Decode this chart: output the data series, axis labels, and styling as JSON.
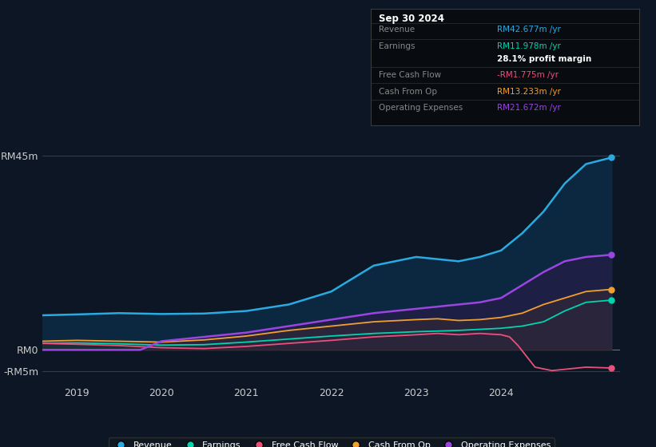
{
  "bg_color": "#0c1624",
  "chart_bg": "#0c1624",
  "ylim": [
    -8,
    52
  ],
  "xlim": [
    2018.6,
    2025.4
  ],
  "yticks_labels": [
    "RM45m",
    "RM0",
    "-RM5m"
  ],
  "yticks_values": [
    45,
    0,
    -5
  ],
  "xticks": [
    2019,
    2020,
    2021,
    2022,
    2023,
    2024
  ],
  "revenue_color": "#29abe2",
  "revenue_fill": "#0d2d4a",
  "earnings_color": "#00d4b0",
  "fcf_color": "#e8517a",
  "cashop_color": "#f0a030",
  "opex_color": "#9b45e0",
  "opex_fill": "#2d1a4a",
  "legend": [
    {
      "label": "Revenue",
      "color": "#29abe2"
    },
    {
      "label": "Earnings",
      "color": "#00d4b0"
    },
    {
      "label": "Free Cash Flow",
      "color": "#e8517a"
    },
    {
      "label": "Cash From Op",
      "color": "#f0a030"
    },
    {
      "label": "Operating Expenses",
      "color": "#9b45e0"
    }
  ],
  "info_title": "Sep 30 2024",
  "info_rows": [
    {
      "label": "Revenue",
      "value": "RM42.677m /yr",
      "vcolor": "#29abe2"
    },
    {
      "label": "Earnings",
      "value": "RM11.978m /yr",
      "vcolor": "#00d4b0"
    },
    {
      "label": "",
      "value": "28.1% profit margin",
      "vcolor": "#ffffff",
      "bold": true
    },
    {
      "label": "Free Cash Flow",
      "value": "-RM1.775m /yr",
      "vcolor": "#e8517a"
    },
    {
      "label": "Cash From Op",
      "value": "RM13.233m /yr",
      "vcolor": "#f0a030"
    },
    {
      "label": "Operating Expenses",
      "value": "RM21.672m /yr",
      "vcolor": "#9b45e0"
    }
  ],
  "revenue": {
    "x": [
      2018.6,
      2019.0,
      2019.5,
      2020.0,
      2020.5,
      2021.0,
      2021.5,
      2022.0,
      2022.25,
      2022.5,
      2022.75,
      2023.0,
      2023.25,
      2023.5,
      2023.75,
      2024.0,
      2024.25,
      2024.5,
      2024.75,
      2025.0,
      2025.3
    ],
    "y": [
      8.0,
      8.2,
      8.5,
      8.3,
      8.4,
      9.0,
      10.5,
      13.5,
      16.5,
      19.5,
      20.5,
      21.5,
      21.0,
      20.5,
      21.5,
      23.0,
      27.0,
      32.0,
      38.5,
      43.0,
      44.5
    ]
  },
  "earnings": {
    "x": [
      2018.6,
      2019.0,
      2019.5,
      2020.0,
      2020.5,
      2021.0,
      2021.5,
      2022.0,
      2022.5,
      2023.0,
      2023.5,
      2024.0,
      2024.25,
      2024.5,
      2024.75,
      2025.0,
      2025.3
    ],
    "y": [
      1.5,
      1.6,
      1.4,
      1.1,
      1.2,
      1.8,
      2.5,
      3.2,
      3.8,
      4.2,
      4.5,
      5.0,
      5.5,
      6.5,
      9.0,
      11.0,
      11.5
    ]
  },
  "fcf": {
    "x": [
      2018.6,
      2019.0,
      2019.5,
      2020.0,
      2020.5,
      2021.0,
      2021.5,
      2022.0,
      2022.5,
      2023.0,
      2023.25,
      2023.5,
      2023.75,
      2024.0,
      2024.1,
      2024.2,
      2024.4,
      2024.6,
      2024.75,
      2025.0,
      2025.3
    ],
    "y": [
      1.5,
      1.3,
      1.0,
      0.5,
      0.3,
      0.8,
      1.5,
      2.2,
      3.0,
      3.5,
      3.8,
      3.5,
      3.8,
      3.5,
      3.0,
      1.0,
      -4.0,
      -4.8,
      -4.5,
      -4.0,
      -4.2
    ]
  },
  "cashop": {
    "x": [
      2018.6,
      2019.0,
      2019.5,
      2020.0,
      2020.5,
      2021.0,
      2021.5,
      2022.0,
      2022.5,
      2023.0,
      2023.25,
      2023.5,
      2023.75,
      2024.0,
      2024.25,
      2024.5,
      2024.75,
      2025.0,
      2025.3
    ],
    "y": [
      2.0,
      2.2,
      2.0,
      1.8,
      2.3,
      3.2,
      4.5,
      5.5,
      6.5,
      7.0,
      7.2,
      6.8,
      7.0,
      7.5,
      8.5,
      10.5,
      12.0,
      13.5,
      14.0
    ]
  },
  "opex": {
    "x": [
      2018.6,
      2019.0,
      2019.5,
      2019.75,
      2020.0,
      2020.25,
      2020.5,
      2021.0,
      2021.5,
      2022.0,
      2022.5,
      2023.0,
      2023.25,
      2023.5,
      2023.75,
      2024.0,
      2024.25,
      2024.5,
      2024.75,
      2025.0,
      2025.3
    ],
    "y": [
      0.0,
      0.0,
      0.0,
      0.0,
      2.0,
      2.5,
      3.0,
      4.0,
      5.5,
      7.0,
      8.5,
      9.5,
      10.0,
      10.5,
      11.0,
      12.0,
      15.0,
      18.0,
      20.5,
      21.5,
      22.0
    ]
  }
}
